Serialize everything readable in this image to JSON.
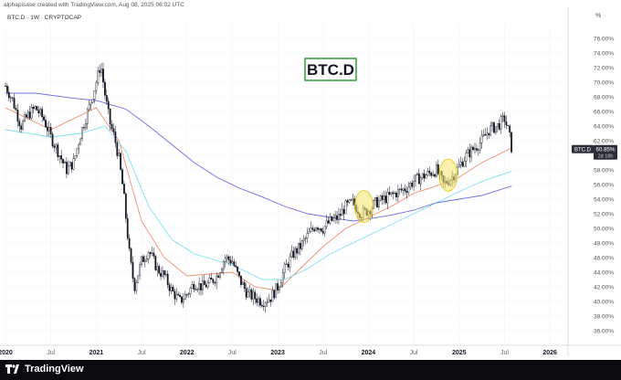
{
  "credit": "alphapisase created with TradingView.com, Aug 08, 2025 06:02 UTC",
  "symbol_line": "BTC.D · 1W · CRYPTOCAP",
  "percent_header": "%",
  "watermark": "BTC.D",
  "footer_brand": "TradingView",
  "colors": {
    "candle": "#131722",
    "ema_red": "#f48c76",
    "ema_cyan": "#7fe0ee",
    "ma_blue": "#6f6fe6",
    "highlight": "#f6e66a",
    "price_tag": "#2a2e39",
    "watermark_border": "#2e9d3c"
  },
  "chart_data": {
    "type": "candlestick",
    "title": "BTC.D",
    "ylabel": "%",
    "ylim": [
      34,
      78
    ],
    "y_ticks": [
      "36.00%",
      "38.00%",
      "40.00%",
      "42.00%",
      "44.00%",
      "46.00%",
      "48.00%",
      "50.00%",
      "52.00%",
      "54.00%",
      "56.00%",
      "58.00%",
      "60.00%",
      "62.00%",
      "64.00%",
      "66.00%",
      "68.00%",
      "70.00%",
      "72.00%",
      "74.00%",
      "76.00%"
    ],
    "x_ticks": [
      "2020",
      "Jul",
      "2021",
      "Jul",
      "2022",
      "Jul",
      "2023",
      "Jul",
      "2024",
      "Jul",
      "2025",
      "Jul",
      "2026"
    ],
    "x_range": [
      2020.0,
      2026.2
    ],
    "last_price_label": "BTC.D",
    "last_price": "60.85%",
    "last_time": "2d 18h",
    "price_path": [
      [
        2020.0,
        69.5
      ],
      [
        2020.08,
        67.5
      ],
      [
        2020.17,
        64.0
      ],
      [
        2020.25,
        65.5
      ],
      [
        2020.33,
        66.5
      ],
      [
        2020.42,
        65.0
      ],
      [
        2020.5,
        62.5
      ],
      [
        2020.58,
        60.5
      ],
      [
        2020.67,
        58.0
      ],
      [
        2020.75,
        59.0
      ],
      [
        2020.83,
        63.0
      ],
      [
        2020.92,
        66.5
      ],
      [
        2021.0,
        70.0
      ],
      [
        2021.05,
        72.5
      ],
      [
        2021.1,
        68.0
      ],
      [
        2021.15,
        64.5
      ],
      [
        2021.2,
        62.5
      ],
      [
        2021.25,
        59.5
      ],
      [
        2021.3,
        55.0
      ],
      [
        2021.37,
        46.0
      ],
      [
        2021.42,
        42.0
      ],
      [
        2021.5,
        45.5
      ],
      [
        2021.58,
        47.0
      ],
      [
        2021.67,
        44.5
      ],
      [
        2021.75,
        43.5
      ],
      [
        2021.83,
        41.5
      ],
      [
        2021.92,
        40.0
      ],
      [
        2022.0,
        41.0
      ],
      [
        2022.08,
        42.5
      ],
      [
        2022.17,
        42.0
      ],
      [
        2022.25,
        42.5
      ],
      [
        2022.33,
        43.5
      ],
      [
        2022.42,
        46.0
      ],
      [
        2022.5,
        45.5
      ],
      [
        2022.58,
        43.0
      ],
      [
        2022.67,
        41.0
      ],
      [
        2022.75,
        40.5
      ],
      [
        2022.83,
        40.0
      ],
      [
        2022.92,
        40.5
      ],
      [
        2023.0,
        42.0
      ],
      [
        2023.08,
        44.5
      ],
      [
        2023.17,
        46.5
      ],
      [
        2023.25,
        47.5
      ],
      [
        2023.33,
        49.0
      ],
      [
        2023.42,
        50.5
      ],
      [
        2023.5,
        50.0
      ],
      [
        2023.58,
        51.0
      ],
      [
        2023.67,
        51.5
      ],
      [
        2023.75,
        53.0
      ],
      [
        2023.83,
        53.5
      ],
      [
        2023.92,
        52.0
      ],
      [
        2024.0,
        52.5
      ],
      [
        2024.08,
        53.5
      ],
      [
        2024.17,
        54.0
      ],
      [
        2024.25,
        54.5
      ],
      [
        2024.33,
        55.0
      ],
      [
        2024.42,
        55.5
      ],
      [
        2024.5,
        56.5
      ],
      [
        2024.58,
        57.0
      ],
      [
        2024.67,
        57.5
      ],
      [
        2024.75,
        58.0
      ],
      [
        2024.83,
        56.0
      ],
      [
        2024.92,
        57.0
      ],
      [
        2025.0,
        58.5
      ],
      [
        2025.08,
        60.0
      ],
      [
        2025.17,
        61.0
      ],
      [
        2025.25,
        62.0
      ],
      [
        2025.33,
        63.5
      ],
      [
        2025.42,
        64.0
      ],
      [
        2025.5,
        65.0
      ],
      [
        2025.55,
        63.0
      ],
      [
        2025.58,
        60.85
      ]
    ],
    "series": [
      {
        "type": "ema",
        "values": [
          [
            2020.0,
            66.5
          ],
          [
            2020.5,
            63.5
          ],
          [
            2021.0,
            66.5
          ],
          [
            2021.25,
            62.0
          ],
          [
            2021.5,
            51.0
          ],
          [
            2021.75,
            46.0
          ],
          [
            2022.0,
            43.5
          ],
          [
            2022.5,
            44.0
          ],
          [
            2022.75,
            42.0
          ],
          [
            2023.0,
            41.5
          ],
          [
            2023.25,
            44.5
          ],
          [
            2023.5,
            47.5
          ],
          [
            2023.75,
            50.0
          ],
          [
            2024.0,
            51.5
          ],
          [
            2024.25,
            53.0
          ],
          [
            2024.5,
            54.8
          ],
          [
            2024.75,
            55.8
          ],
          [
            2025.0,
            57.0
          ],
          [
            2025.25,
            59.0
          ],
          [
            2025.58,
            61.0
          ]
        ]
      },
      {
        "type": "ema",
        "values": [
          [
            2020.0,
            63.5
          ],
          [
            2020.5,
            62.5
          ],
          [
            2020.83,
            63.0
          ],
          [
            2021.1,
            64.0
          ],
          [
            2021.33,
            60.5
          ],
          [
            2021.58,
            53.0
          ],
          [
            2021.83,
            48.5
          ],
          [
            2022.08,
            46.5
          ],
          [
            2022.5,
            45.0
          ],
          [
            2022.83,
            43.0
          ],
          [
            2023.08,
            43.0
          ],
          [
            2023.33,
            44.5
          ],
          [
            2023.58,
            46.5
          ],
          [
            2023.83,
            48.0
          ],
          [
            2024.08,
            49.5
          ],
          [
            2024.33,
            51.0
          ],
          [
            2024.58,
            52.5
          ],
          [
            2024.83,
            54.0
          ],
          [
            2025.08,
            55.5
          ],
          [
            2025.33,
            56.8
          ],
          [
            2025.58,
            57.8
          ]
        ]
      },
      {
        "type": "ma",
        "values": [
          [
            2020.0,
            68.5
          ],
          [
            2020.33,
            68.5
          ],
          [
            2020.75,
            67.8
          ],
          [
            2021.0,
            67.5
          ],
          [
            2021.33,
            66.3
          ],
          [
            2021.58,
            64.0
          ],
          [
            2021.83,
            61.5
          ],
          [
            2022.08,
            59.0
          ],
          [
            2022.33,
            57.0
          ],
          [
            2022.58,
            55.5
          ],
          [
            2022.83,
            54.3
          ],
          [
            2023.08,
            53.0
          ],
          [
            2023.33,
            52.0
          ],
          [
            2023.58,
            51.5
          ],
          [
            2023.83,
            51.0
          ],
          [
            2024.0,
            51.3
          ],
          [
            2024.25,
            51.8
          ],
          [
            2024.5,
            52.5
          ],
          [
            2024.75,
            53.5
          ],
          [
            2025.0,
            54.0
          ],
          [
            2025.25,
            54.5
          ],
          [
            2025.58,
            55.8
          ]
        ]
      }
    ],
    "annotations": [
      {
        "type": "ellipse",
        "x": 2023.95,
        "y": 53.0,
        "rx_years": 0.1,
        "ry_pct": 2.2
      },
      {
        "type": "ellipse",
        "x": 2024.88,
        "y": 57.3,
        "rx_years": 0.1,
        "ry_pct": 2.2
      }
    ]
  }
}
